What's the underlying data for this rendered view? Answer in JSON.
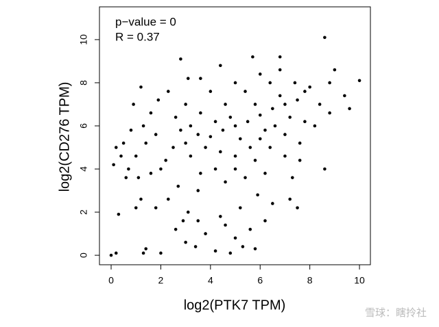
{
  "chart_data": {
    "type": "scatter",
    "annotations": [
      "p−value = 0",
      "R = 0.37"
    ],
    "xlabel": "log2(PTK7 TPM)",
    "ylabel": "log2(CD276 TPM)",
    "color": "#000000",
    "xlim": [
      -0.47,
      10.44
    ],
    "ylim": [
      -0.44,
      11.52
    ],
    "xticks": [
      0,
      2,
      4,
      6,
      8,
      10
    ],
    "yticks": [
      0,
      2,
      4,
      6,
      8,
      10
    ],
    "x": [
      4,
      4.5,
      5,
      5.5,
      6,
      6.5,
      7,
      5.2,
      4.8,
      6.2,
      5.8,
      6.8,
      4.2,
      3.8,
      3.5,
      3,
      3.2,
      4.4,
      5,
      5.6,
      6,
      6.6,
      7.2,
      7.5,
      7.8,
      6.4,
      5.4,
      4.6,
      3.6,
      2.8,
      2.5,
      2.2,
      2.6,
      3,
      4,
      5,
      6,
      6.8,
      7.4,
      8,
      8.4,
      7.8,
      7,
      6.4,
      5.8,
      5,
      4.2,
      3.6,
      3.2,
      2.7,
      3.5,
      4.6,
      5.4,
      6.2,
      7,
      7.6,
      8.2,
      8.8,
      9.4,
      9,
      8.6,
      10,
      9.6,
      2.8,
      3.1,
      2.3,
      1.9,
      1.2,
      0.9,
      1.6,
      1.3,
      0.8,
      0.5,
      0.2,
      0.1,
      0.4,
      0.7,
      1,
      1.4,
      1.8,
      1.1,
      1.6,
      2,
      0.6,
      1,
      1.2,
      1.8,
      2.3,
      0.3,
      0.2,
      0,
      1.4,
      1.3,
      2,
      3,
      3.4,
      3.8,
      4.2,
      4.6,
      5,
      5.3,
      5.6,
      4.4,
      3.5,
      3.1,
      5.2,
      5.9,
      6.2,
      6.5,
      7.2,
      7.5,
      4.8,
      5.8,
      2.6,
      2.9,
      6.8,
      5.7,
      4.4,
      3.6,
      8.8,
      7.6,
      8.6,
      7.3
    ],
    "y": [
      5.5,
      5.8,
      6,
      6.2,
      6.5,
      6.8,
      7,
      5.4,
      6.4,
      5.8,
      7,
      7.4,
      6.2,
      5,
      5.6,
      5.2,
      6,
      4.8,
      4.6,
      5,
      5.4,
      6,
      6.4,
      7.2,
      7.6,
      8,
      7.6,
      7,
      6.6,
      5.8,
      5,
      4.4,
      6.4,
      7,
      7.6,
      8,
      8.4,
      8.6,
      8,
      7.8,
      7,
      6.2,
      5.6,
      5,
      4.4,
      4,
      4,
      3.8,
      4.6,
      3.2,
      3,
      3.4,
      3.6,
      3.8,
      4.6,
      5.2,
      6,
      6.6,
      7.4,
      8.6,
      10.1,
      8.1,
      6.8,
      9.1,
      8.2,
      7.6,
      7.2,
      7.8,
      7,
      6.6,
      6,
      5.8,
      5.2,
      5,
      4.2,
      4.6,
      4,
      4.6,
      5.2,
      5.6,
      3.6,
      3.8,
      4,
      3.6,
      2.2,
      2.6,
      2.2,
      2.6,
      1.9,
      0.1,
      0,
      0.3,
      0.1,
      0.1,
      0.6,
      0.4,
      1,
      0.2,
      1.4,
      0.8,
      0.4,
      1.2,
      1.8,
      1.6,
      2,
      2.2,
      2.8,
      1.6,
      2.4,
      2.6,
      2.2,
      0.1,
      0.3,
      1.2,
      1.6,
      9.2,
      9.2,
      8.8,
      8.2,
      8,
      4.4,
      4,
      3.6
    ]
  },
  "watermark": "雪球：瞎拎社"
}
